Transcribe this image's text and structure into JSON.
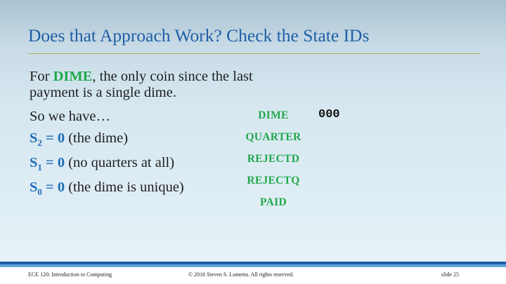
{
  "slide": {
    "title": "Does that Approach Work?  Check the State IDs"
  },
  "intro": {
    "prefix": "For ",
    "highlight": "DIME",
    "line1_rest": ", the only coin since the last",
    "line2": "payment is a single dime."
  },
  "so_we_have": "So we have…",
  "bits": [
    {
      "name": "S",
      "sub": "2",
      "eq": " = 0",
      "note": " (the dime)"
    },
    {
      "name": "S",
      "sub": "1",
      "eq": " = 0",
      "note": " (no quarters at all)"
    },
    {
      "name": "S",
      "sub": "0",
      "eq": " = 0",
      "note": " (the dime is unique)"
    }
  ],
  "states": [
    "DIME",
    "QUARTER",
    "REJECTD",
    "REJECTQ",
    "PAID"
  ],
  "dime_code": "000",
  "footer": {
    "course": "ECE 120: Introduction to Computing",
    "copyright": "© 2016 Steven S. Lumetta.  All rights reserved.",
    "slide_number": "slide 25"
  },
  "colors": {
    "title": "#1f5fa6",
    "state_green": "#22a84e",
    "bit_blue": "#1f6db6",
    "footer_dark": "#1f5fa6",
    "footer_light": "#5fa3dc"
  }
}
